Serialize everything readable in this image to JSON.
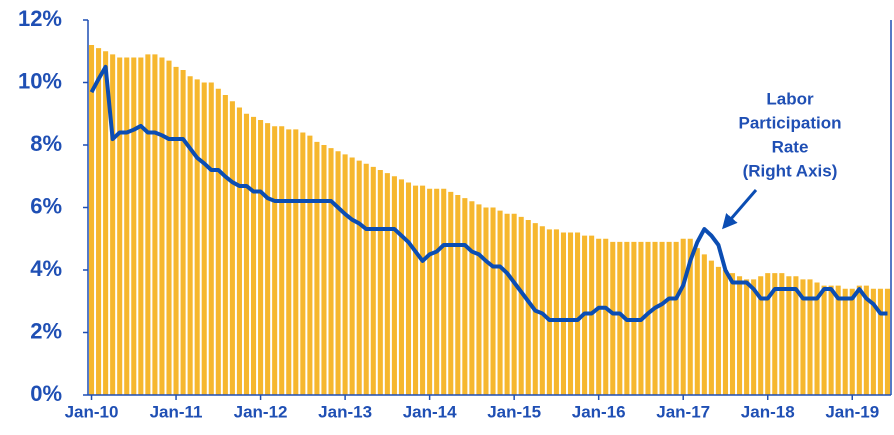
{
  "chart_data": {
    "type": "bar",
    "categories": [
      "Jan-10",
      null,
      null,
      null,
      null,
      null,
      null,
      null,
      null,
      null,
      null,
      null,
      "Jan-11",
      null,
      null,
      null,
      null,
      null,
      null,
      null,
      null,
      null,
      null,
      null,
      "Jan-12",
      null,
      null,
      null,
      null,
      null,
      null,
      null,
      null,
      null,
      null,
      null,
      "Jan-13",
      null,
      null,
      null,
      null,
      null,
      null,
      null,
      null,
      null,
      null,
      null,
      "Jan-14",
      null,
      null,
      null,
      null,
      null,
      null,
      null,
      null,
      null,
      null,
      null,
      "Jan-15",
      null,
      null,
      null,
      null,
      null,
      null,
      null,
      null,
      null,
      null,
      null,
      "Jan-16",
      null,
      null,
      null,
      null,
      null,
      null,
      null,
      null,
      null,
      null,
      null,
      "Jan-17",
      null,
      null,
      null,
      null,
      null,
      null,
      null,
      null,
      null,
      null,
      null,
      "Jan-18",
      null,
      null,
      null,
      null,
      null,
      null,
      null,
      null,
      null,
      null,
      null,
      "Jan-19",
      null,
      null,
      null,
      null,
      null
    ],
    "series": [
      {
        "type": "bar",
        "color": "#f6b72e",
        "values": [
          11.2,
          11.1,
          11.0,
          10.9,
          10.8,
          10.8,
          10.8,
          10.8,
          10.9,
          10.9,
          10.8,
          10.7,
          10.5,
          10.4,
          10.2,
          10.1,
          10.0,
          10.0,
          9.8,
          9.6,
          9.4,
          9.2,
          9.0,
          8.9,
          8.8,
          8.7,
          8.6,
          8.6,
          8.5,
          8.5,
          8.4,
          8.3,
          8.1,
          8.0,
          7.9,
          7.8,
          7.7,
          7.6,
          7.5,
          7.4,
          7.3,
          7.2,
          7.1,
          7.0,
          6.9,
          6.8,
          6.7,
          6.7,
          6.6,
          6.6,
          6.6,
          6.5,
          6.4,
          6.3,
          6.2,
          6.1,
          6.0,
          6.0,
          5.9,
          5.8,
          5.8,
          5.7,
          5.6,
          5.5,
          5.4,
          5.3,
          5.3,
          5.2,
          5.2,
          5.2,
          5.1,
          5.1,
          5.0,
          5.0,
          4.9,
          4.9,
          4.9,
          4.9,
          4.9,
          4.9,
          4.9,
          4.9,
          4.9,
          4.9,
          5.0,
          5.0,
          4.7,
          4.5,
          4.3,
          4.1,
          4.0,
          3.9,
          3.8,
          3.7,
          3.7,
          3.8,
          3.9,
          3.9,
          3.9,
          3.8,
          3.8,
          3.7,
          3.7,
          3.6,
          3.5,
          3.5,
          3.5,
          3.4,
          3.4,
          3.5,
          3.5,
          3.4,
          3.4,
          3.4
        ]
      },
      {
        "type": "line",
        "axis": "y2",
        "color": "#0b4db3",
        "values": [
          64.73,
          64.87,
          65.0,
          64.23,
          64.3,
          64.3,
          64.33,
          64.37,
          64.3,
          64.3,
          64.27,
          64.23,
          64.23,
          64.23,
          64.13,
          64.03,
          63.97,
          63.9,
          63.9,
          63.83,
          63.77,
          63.73,
          63.73,
          63.67,
          63.67,
          63.6,
          63.57,
          63.57,
          63.57,
          63.57,
          63.57,
          63.57,
          63.57,
          63.57,
          63.57,
          63.5,
          63.43,
          63.37,
          63.33,
          63.27,
          63.27,
          63.27,
          63.27,
          63.27,
          63.2,
          63.13,
          63.03,
          62.93,
          63.0,
          63.03,
          63.1,
          63.1,
          63.1,
          63.1,
          63.03,
          63.0,
          62.93,
          62.87,
          62.87,
          62.8,
          62.7,
          62.6,
          62.5,
          62.4,
          62.37,
          62.3,
          62.3,
          62.3,
          62.3,
          62.3,
          62.37,
          62.37,
          62.43,
          62.43,
          62.37,
          62.37,
          62.3,
          62.3,
          62.3,
          62.37,
          62.43,
          62.47,
          62.53,
          62.53,
          62.67,
          62.93,
          63.13,
          63.27,
          63.2,
          63.1,
          62.83,
          62.7,
          62.7,
          62.7,
          62.63,
          62.53,
          62.53,
          62.63,
          62.63,
          62.63,
          62.63,
          62.53,
          62.53,
          62.53,
          62.63,
          62.63,
          62.53,
          62.53,
          62.53,
          62.63,
          62.53,
          62.47,
          62.37,
          62.37
        ]
      }
    ],
    "ylim": [
      0,
      12
    ],
    "yticks": [
      {
        "value": 0,
        "label": "0%"
      },
      {
        "value": 2,
        "label": "2%"
      },
      {
        "value": 4,
        "label": "4%"
      },
      {
        "value": 6,
        "label": "6%"
      },
      {
        "value": 8,
        "label": "8%"
      },
      {
        "value": 10,
        "label": "10%"
      },
      {
        "value": 12,
        "label": "12%"
      }
    ],
    "y2lim": [
      61.5,
      65.5
    ],
    "annotation": [
      "Labor",
      "Participation",
      "Rate",
      "(Right Axis)"
    ]
  }
}
